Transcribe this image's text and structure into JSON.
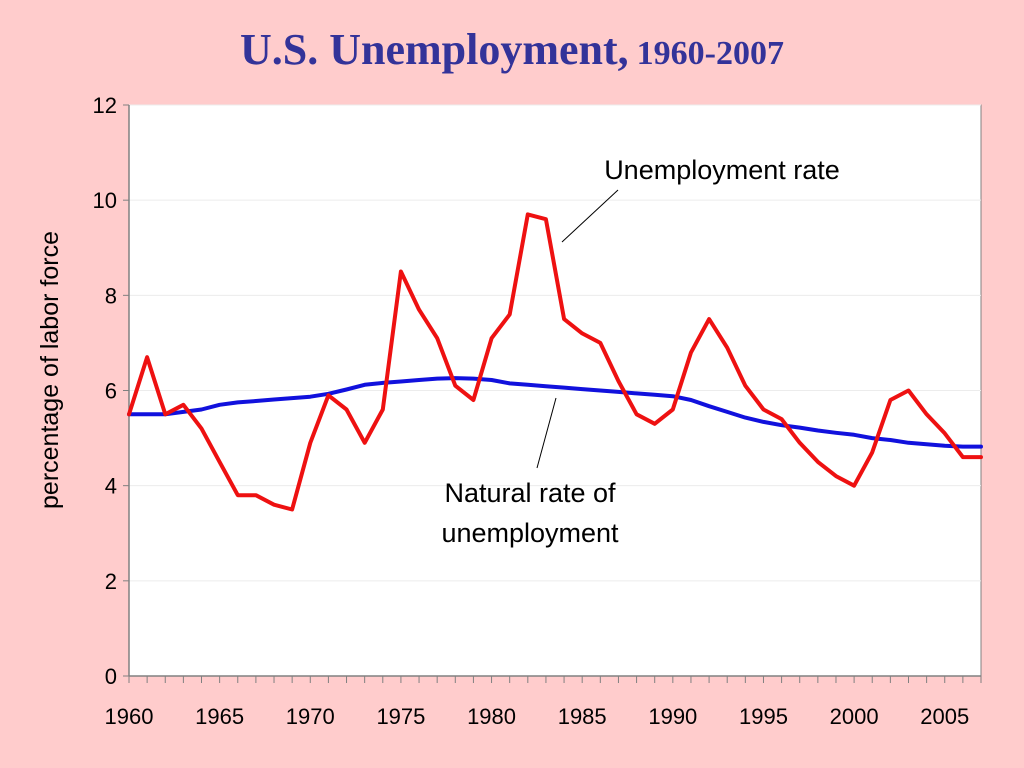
{
  "title": {
    "main": "U.S. Unemployment,",
    "years": "1960-2007"
  },
  "chart_data": {
    "type": "line",
    "ylabel": "percentage of labor force",
    "xlabel": "",
    "xlim": [
      1960,
      2007
    ],
    "ylim": [
      0,
      12
    ],
    "yticks": [
      0,
      2,
      4,
      6,
      8,
      10,
      12
    ],
    "xticks": [
      1960,
      1965,
      1970,
      1975,
      1980,
      1985,
      1990,
      1995,
      2000,
      2005
    ],
    "grid": "horizontal",
    "x": [
      1960,
      1961,
      1962,
      1963,
      1964,
      1965,
      1966,
      1967,
      1968,
      1969,
      1970,
      1971,
      1972,
      1973,
      1974,
      1975,
      1976,
      1977,
      1978,
      1979,
      1980,
      1981,
      1982,
      1983,
      1984,
      1985,
      1986,
      1987,
      1988,
      1989,
      1990,
      1991,
      1992,
      1993,
      1994,
      1995,
      1996,
      1997,
      1998,
      1999,
      2000,
      2001,
      2002,
      2003,
      2004,
      2005,
      2006,
      2007
    ],
    "series": [
      {
        "name": "Unemployment rate",
        "color": "#EE1111",
        "values": [
          5.5,
          6.7,
          5.5,
          5.7,
          5.2,
          4.5,
          3.8,
          3.8,
          3.6,
          3.5,
          4.9,
          5.9,
          5.6,
          4.9,
          5.6,
          8.5,
          7.7,
          7.1,
          6.1,
          5.8,
          7.1,
          7.6,
          9.7,
          9.6,
          7.5,
          7.2,
          7.0,
          6.2,
          5.5,
          5.3,
          5.6,
          6.8,
          7.5,
          6.9,
          6.1,
          5.6,
          5.4,
          4.9,
          4.5,
          4.2,
          4.0,
          4.7,
          5.8,
          6.0,
          5.5,
          5.1,
          4.6,
          4.6
        ]
      },
      {
        "name": "Natural rate of unemployment",
        "color": "#1111DD",
        "values": [
          5.5,
          5.5,
          5.5,
          5.55,
          5.6,
          5.7,
          5.75,
          5.78,
          5.81,
          5.84,
          5.87,
          5.93,
          6.02,
          6.12,
          6.16,
          6.19,
          6.22,
          6.25,
          6.26,
          6.25,
          6.22,
          6.15,
          6.12,
          6.09,
          6.06,
          6.03,
          6.0,
          5.97,
          5.94,
          5.91,
          5.88,
          5.8,
          5.67,
          5.55,
          5.43,
          5.34,
          5.27,
          5.22,
          5.16,
          5.11,
          5.07,
          5.0,
          4.96,
          4.9,
          4.87,
          4.84,
          4.82,
          4.82
        ]
      }
    ],
    "annotations": [
      {
        "text": "Unemployment rate"
      },
      {
        "lines": [
          "Natural rate of",
          "unemployment"
        ]
      }
    ]
  }
}
